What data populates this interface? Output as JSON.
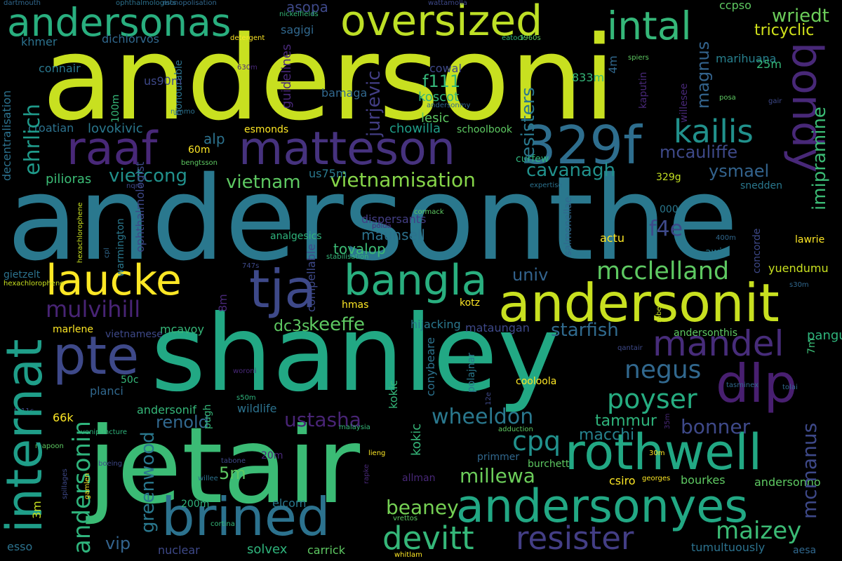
{
  "words": [
    {
      "text": "andersoni",
      "color": "#c8e020"
    },
    {
      "text": "andersonthe",
      "color": "#2a788e"
    },
    {
      "text": "shanley",
      "color": "#22a884"
    },
    {
      "text": "jetair",
      "color": "#3bbb75"
    },
    {
      "text": "andersonit",
      "color": "#c8e020"
    },
    {
      "text": "andersonyes",
      "color": "#22a884"
    },
    {
      "text": "rothwell",
      "color": "#22a884"
    },
    {
      "text": "oversized",
      "color": "#bddf26"
    },
    {
      "text": "matteson",
      "color": "#46327e"
    },
    {
      "text": "raaf",
      "color": "#482878"
    },
    {
      "text": "329f",
      "color": "#2e6e8e"
    },
    {
      "text": "andersonas",
      "color": "#29af7f"
    },
    {
      "text": "intal",
      "color": "#35b779"
    },
    {
      "text": "tja",
      "color": "#3e4989"
    },
    {
      "text": "bangla",
      "color": "#29af7f"
    },
    {
      "text": "laucke",
      "color": "#fde725"
    },
    {
      "text": "internat",
      "color": "#1f9e89"
    },
    {
      "text": "pte",
      "color": "#3e4989"
    },
    {
      "text": "dlp",
      "color": "#481f70"
    },
    {
      "text": "brined",
      "color": "#2c728e"
    },
    {
      "text": "mandel",
      "color": "#472c7a"
    },
    {
      "text": "bondy",
      "color": "#482878"
    },
    {
      "text": "kailis",
      "color": "#21918c"
    },
    {
      "text": "mcclelland",
      "color": "#5ec962"
    },
    {
      "text": "resister",
      "color": "#433e85"
    },
    {
      "text": "ehrlich",
      "color": "#1f9a8a"
    },
    {
      "text": "mulvihill",
      "color": "#482475"
    },
    {
      "text": "andersonin",
      "color": "#2fb47c"
    },
    {
      "text": "devitt",
      "color": "#35b779"
    },
    {
      "text": "poyser",
      "color": "#26ad81"
    },
    {
      "text": "negus",
      "color": "#31688e"
    },
    {
      "text": "cpq",
      "color": "#21918c"
    },
    {
      "text": "wheeldon",
      "color": "#2a788e"
    },
    {
      "text": "ustasha",
      "color": "#482475"
    },
    {
      "text": "millewa",
      "color": "#6ccd5a"
    },
    {
      "text": "beaney",
      "color": "#75d054"
    },
    {
      "text": "maizey",
      "color": "#3bbb75"
    },
    {
      "text": "bonner",
      "color": "#3e4989"
    },
    {
      "text": "mcmanus",
      "color": "#3e4989"
    },
    {
      "text": "starfish",
      "color": "#306a8e"
    },
    {
      "text": "keeffe",
      "color": "#5ec962"
    },
    {
      "text": "vietnamisation",
      "color": "#86d549"
    },
    {
      "text": "vietcong",
      "color": "#21918c"
    },
    {
      "text": "vietnam",
      "color": "#5ec962"
    },
    {
      "text": "cavanagh",
      "color": "#21918c"
    },
    {
      "text": "mcauliffe",
      "color": "#3e4989"
    },
    {
      "text": "ysmael",
      "color": "#33638d"
    },
    {
      "text": "imipramine",
      "color": "#3bbb75"
    },
    {
      "text": "magnus",
      "color": "#33638d"
    },
    {
      "text": "resisters",
      "color": "#2a788e"
    },
    {
      "text": "jurjevic",
      "color": "#433e85"
    },
    {
      "text": "f111",
      "color": "#35b779"
    },
    {
      "text": "wriedt",
      "color": "#6ccd5a"
    },
    {
      "text": "tricyclic",
      "color": "#d2e21b"
    },
    {
      "text": "marihuana",
      "color": "#27808e"
    },
    {
      "text": "greenwood",
      "color": "#2a788e"
    },
    {
      "text": "renold",
      "color": "#31688e"
    },
    {
      "text": "tammur",
      "color": "#2fb47c"
    },
    {
      "text": "macchi",
      "color": "#26828e"
    },
    {
      "text": "pangu",
      "color": "#2fb47c"
    },
    {
      "text": "f4e",
      "color": "#3e4989"
    },
    {
      "text": "univ",
      "color": "#33638d"
    },
    {
      "text": "vip",
      "color": "#33638d"
    },
    {
      "text": "5m",
      "color": "#5ec962"
    },
    {
      "text": "dc3s",
      "color": "#5ec962"
    },
    {
      "text": "alp",
      "color": "#2c728e"
    },
    {
      "text": "maunsell",
      "color": "#2c728e"
    },
    {
      "text": "tovalop",
      "color": "#3bbb75"
    },
    {
      "text": "lovokivic",
      "color": "#2a788e"
    },
    {
      "text": "chowilla",
      "color": "#1f9e89"
    },
    {
      "text": "koscot",
      "color": "#31b57b"
    },
    {
      "text": "lesic",
      "color": "#5ec962"
    },
    {
      "text": "guidelines",
      "color": "#482878"
    },
    {
      "text": "honourable",
      "color": "#2c728e"
    },
    {
      "text": "decentralisation",
      "color": "#2c728e"
    },
    {
      "text": "pilioras",
      "color": "#3bbb75"
    },
    {
      "text": "croatian",
      "color": "#2c728e"
    },
    {
      "text": "connair",
      "color": "#2a788e"
    },
    {
      "text": "khmer",
      "color": "#2c728e"
    },
    {
      "text": "us90m",
      "color": "#3e4989"
    },
    {
      "text": "sagigi",
      "color": "#31688e"
    },
    {
      "text": "asopa",
      "color": "#3e4989"
    },
    {
      "text": "bamaga",
      "color": "#31688e"
    },
    {
      "text": "cowal",
      "color": "#3e4989"
    },
    {
      "text": "esmonds",
      "color": "#fde725"
    },
    {
      "text": "schoolbook",
      "color": "#5ec962"
    },
    {
      "text": "curfew",
      "color": "#2fb47c"
    },
    {
      "text": "kaputin",
      "color": "#482878"
    },
    {
      "text": "833m",
      "color": "#35b779"
    },
    {
      "text": "25m",
      "color": "#35b779"
    },
    {
      "text": "4m",
      "color": "#31688e"
    },
    {
      "text": "329g",
      "color": "#c2df23"
    },
    {
      "text": "000m",
      "color": "#2a788e"
    },
    {
      "text": "awic",
      "color": "#2a788e"
    },
    {
      "text": "lawrie",
      "color": "#fde725"
    },
    {
      "text": "yuendumu",
      "color": "#c8e020"
    },
    {
      "text": "concorde",
      "color": "#3e4989"
    },
    {
      "text": "snedden",
      "color": "#2a788e"
    },
    {
      "text": "willesee",
      "color": "#482878"
    },
    {
      "text": "posa",
      "color": "#5ec962"
    },
    {
      "text": "gair",
      "color": "#3e4989"
    },
    {
      "text": "spiers",
      "color": "#5ec962"
    },
    {
      "text": "ccpso",
      "color": "#5ec962"
    },
    {
      "text": "actu",
      "color": "#fde725"
    },
    {
      "text": "salmonellae",
      "color": "#31688e"
    },
    {
      "text": "400m",
      "color": "#31688e"
    },
    {
      "text": "s30m",
      "color": "#31688e"
    },
    {
      "text": "andersonthis",
      "color": "#5ec962"
    },
    {
      "text": "robey",
      "color": "#c8e020"
    },
    {
      "text": "7m",
      "color": "#3bbb75"
    },
    {
      "text": "qantair",
      "color": "#3e4989"
    },
    {
      "text": "tasminex",
      "color": "#31688e"
    },
    {
      "text": "tolai",
      "color": "#31688e"
    },
    {
      "text": "bourkes",
      "color": "#5ec962"
    },
    {
      "text": "andersonno",
      "color": "#5ec962"
    },
    {
      "text": "georges",
      "color": "#fde725"
    },
    {
      "text": "30m",
      "color": "#fde725"
    },
    {
      "text": "35m",
      "color": "#482878"
    },
    {
      "text": "csiro",
      "color": "#fde725"
    },
    {
      "text": "tumultuously",
      "color": "#2c728e"
    },
    {
      "text": "aesa",
      "color": "#31688e"
    },
    {
      "text": "burchett",
      "color": "#5ec962"
    },
    {
      "text": "primmer",
      "color": "#31688e"
    },
    {
      "text": "adduction",
      "color": "#5ec962"
    },
    {
      "text": "cooloola",
      "color": "#fde725"
    },
    {
      "text": "conybeare",
      "color": "#2c728e"
    },
    {
      "text": "polajnar",
      "color": "#2a788e"
    },
    {
      "text": "12e",
      "color": "#3e4989"
    },
    {
      "text": "mataungan",
      "color": "#3e4989"
    },
    {
      "text": "kokic",
      "color": "#35b779"
    },
    {
      "text": "hijacking",
      "color": "#2a788e"
    },
    {
      "text": "kotz",
      "color": "#fde725"
    },
    {
      "text": "hmas",
      "color": "#fde725"
    },
    {
      "text": "compellable",
      "color": "#3e4989"
    },
    {
      "text": "stabilisation",
      "color": "#35b779"
    },
    {
      "text": "747s",
      "color": "#3e4989"
    },
    {
      "text": "analgesics",
      "color": "#2fb47c"
    },
    {
      "text": "polda",
      "color": "#482878"
    },
    {
      "text": "cormack",
      "color": "#5ec962"
    },
    {
      "text": "expertise",
      "color": "#2c728e"
    },
    {
      "text": "dispersants",
      "color": "#433e85"
    },
    {
      "text": "us75m",
      "color": "#2a788e"
    },
    {
      "text": "8m",
      "color": "#482878"
    },
    {
      "text": "ophthalmologist",
      "color": "#3e4989"
    },
    {
      "text": "cpl",
      "color": "#31688e"
    },
    {
      "text": "warmington",
      "color": "#2a788e"
    },
    {
      "text": "gietzelt",
      "color": "#2c728e"
    },
    {
      "text": "hexachlorophene",
      "color": "#c8e020"
    },
    {
      "text": "marlene",
      "color": "#fde725"
    },
    {
      "text": "vietnamese",
      "color": "#3e4989"
    },
    {
      "text": "mcavoy",
      "color": "#35b779"
    },
    {
      "text": "planci",
      "color": "#31688e"
    },
    {
      "text": "50c",
      "color": "#35b779"
    },
    {
      "text": "pugh",
      "color": "#35b779"
    },
    {
      "text": "woroni",
      "color": "#482878"
    },
    {
      "text": "andersonif",
      "color": "#35b779"
    },
    {
      "text": "s50m",
      "color": "#2fb47c"
    },
    {
      "text": "wildlife",
      "color": "#2c728e"
    },
    {
      "text": "66k",
      "color": "#fde725"
    },
    {
      "text": "f111c",
      "color": "#3e4989"
    },
    {
      "text": "3m",
      "color": "#c8e020"
    },
    {
      "text": "malaysia",
      "color": "#35b779"
    },
    {
      "text": "venipuncture",
      "color": "#2fb47c"
    },
    {
      "text": "mapoon",
      "color": "#5ec962"
    },
    {
      "text": "boeing",
      "color": "#3e4989"
    },
    {
      "text": "tabone",
      "color": "#3e4989"
    },
    {
      "text": "lieng",
      "color": "#fde725"
    },
    {
      "text": "rapke",
      "color": "#482878"
    },
    {
      "text": "20m",
      "color": "#482878"
    },
    {
      "text": "spillages",
      "color": "#3e4989"
    },
    {
      "text": "gamlen",
      "color": "#fde725"
    },
    {
      "text": "willee",
      "color": "#2c728e"
    },
    {
      "text": "allman",
      "color": "#482878"
    },
    {
      "text": "200m",
      "color": "#2fb47c"
    },
    {
      "text": "elcom",
      "color": "#2a788e"
    },
    {
      "text": "cortina",
      "color": "#35b779"
    },
    {
      "text": "vrettos",
      "color": "#5ec962"
    },
    {
      "text": "esso",
      "color": "#2c728e"
    },
    {
      "text": "nuclear",
      "color": "#3e4989"
    },
    {
      "text": "solvex",
      "color": "#2fb47c"
    },
    {
      "text": "carrick",
      "color": "#5ec962"
    },
    {
      "text": "whitlam",
      "color": "#fde725"
    },
    {
      "text": "dartmouth",
      "color": "#31688e"
    },
    {
      "text": "ophthalmologists",
      "color": "#2c728e"
    },
    {
      "text": "monopolisation",
      "color": "#31688e"
    },
    {
      "text": "wattamolla",
      "color": "#3e4989"
    },
    {
      "text": "nickelfields",
      "color": "#35b779"
    },
    {
      "text": "dichlorvos",
      "color": "#31688e"
    },
    {
      "text": "detergent",
      "color": "#fde725"
    },
    {
      "text": "630m",
      "color": "#482878"
    },
    {
      "text": "100m",
      "color": "#35b779"
    },
    {
      "text": "nimmo",
      "color": "#2c728e"
    },
    {
      "text": "andersonmy",
      "color": "#31688e"
    },
    {
      "text": "eatock",
      "color": "#2fb47c"
    },
    {
      "text": "1960s",
      "color": "#5ec962"
    },
    {
      "text": "60m",
      "color": "#fde725"
    },
    {
      "text": "bengtsson",
      "color": "#5ec962"
    },
    {
      "text": "nqra",
      "color": "#3e4989"
    },
    {
      "text": "50m",
      "color": "#2c728e"
    },
    {
      "text": "tubemakers",
      "color": "#2c728e"
    }
  ]
}
